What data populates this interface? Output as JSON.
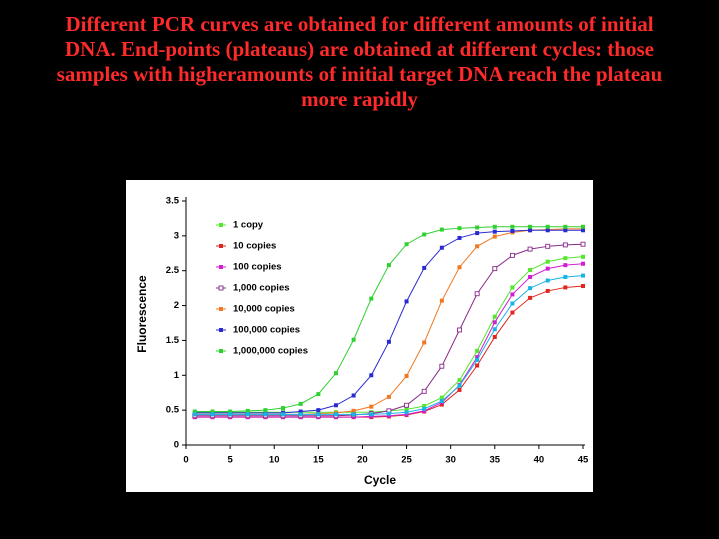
{
  "slide": {
    "title_lines": [
      "Different PCR curves are obtained for different amounts of initial",
      "DNA. End-points (plateaus) are obtained at different cycles: those",
      "samples with higheramounts of initial target DNA reach the plateau",
      "more rapidly"
    ]
  },
  "chart_data": {
    "type": "line",
    "x_label": "Cycle",
    "y_label": "Fluorescence",
    "x": [
      1,
      3,
      5,
      7,
      9,
      11,
      13,
      15,
      17,
      19,
      21,
      23,
      25,
      27,
      29,
      31,
      33,
      35,
      37,
      39,
      41,
      43,
      45
    ],
    "xlim": [
      0,
      45
    ],
    "xticks": [
      0,
      5,
      10,
      15,
      20,
      25,
      30,
      35,
      40,
      45
    ],
    "ylim": [
      0,
      3.5
    ],
    "yticks": [
      0,
      0.5,
      1,
      1.5,
      2,
      2.5,
      3,
      3.5
    ],
    "legend": "upper left",
    "series": [
      {
        "name": "1 copy",
        "color": "#55e62e",
        "marker": "square",
        "values": [
          0.47,
          0.47,
          0.47,
          0.47,
          0.47,
          0.47,
          0.47,
          0.47,
          0.47,
          0.47,
          0.47,
          0.49,
          0.51,
          0.56,
          0.68,
          0.93,
          1.35,
          1.84,
          2.26,
          2.51,
          2.63,
          2.68,
          2.7
        ]
      },
      {
        "name": "10 copies",
        "color": "#e0261e",
        "marker": "square",
        "values": [
          0.4,
          0.4,
          0.4,
          0.4,
          0.4,
          0.4,
          0.4,
          0.4,
          0.4,
          0.4,
          0.4,
          0.41,
          0.43,
          0.48,
          0.58,
          0.79,
          1.14,
          1.55,
          1.9,
          2.11,
          2.21,
          2.26,
          2.28
        ]
      },
      {
        "name": "100 copies",
        "color": "#d21ed2",
        "marker": "square",
        "values": [
          0.4,
          0.4,
          0.4,
          0.4,
          0.4,
          0.4,
          0.4,
          0.4,
          0.4,
          0.4,
          0.41,
          0.42,
          0.44,
          0.49,
          0.61,
          0.86,
          1.26,
          1.76,
          2.16,
          2.41,
          2.53,
          2.58,
          2.6
        ]
      },
      {
        "name": "1,000 copies",
        "color": "#8a2a8a",
        "marker": "open-square",
        "values": [
          0.42,
          0.42,
          0.42,
          0.42,
          0.42,
          0.42,
          0.42,
          0.42,
          0.42,
          0.43,
          0.45,
          0.49,
          0.57,
          0.77,
          1.13,
          1.65,
          2.17,
          2.53,
          2.72,
          2.81,
          2.85,
          2.87,
          2.88
        ]
      },
      {
        "name": "10,000 copies",
        "color": "#f07820",
        "marker": "square",
        "values": [
          0.44,
          0.44,
          0.44,
          0.44,
          0.44,
          0.44,
          0.44,
          0.45,
          0.46,
          0.49,
          0.55,
          0.69,
          0.99,
          1.47,
          2.07,
          2.55,
          2.85,
          2.99,
          3.05,
          3.08,
          3.09,
          3.1,
          3.1
        ]
      },
      {
        "name": "100,000 copies",
        "color": "#2a2ad2",
        "marker": "square",
        "values": [
          0.46,
          0.46,
          0.46,
          0.46,
          0.46,
          0.46,
          0.48,
          0.5,
          0.57,
          0.71,
          1.0,
          1.48,
          2.06,
          2.54,
          2.83,
          2.97,
          3.04,
          3.06,
          3.07,
          3.08,
          3.08,
          3.08,
          3.08
        ]
      },
      {
        "name": "1,000,000 copies",
        "color": "#30d030",
        "marker": "square",
        "values": [
          0.48,
          0.48,
          0.48,
          0.49,
          0.5,
          0.53,
          0.59,
          0.73,
          1.03,
          1.51,
          2.1,
          2.58,
          2.88,
          3.02,
          3.09,
          3.11,
          3.12,
          3.13,
          3.13,
          3.13,
          3.13,
          3.13,
          3.13
        ]
      },
      {
        "color": "#18b4e8",
        "marker": "square",
        "values": [
          0.44,
          0.44,
          0.44,
          0.44,
          0.44,
          0.44,
          0.44,
          0.44,
          0.44,
          0.44,
          0.44,
          0.45,
          0.47,
          0.52,
          0.63,
          0.85,
          1.22,
          1.66,
          2.03,
          2.25,
          2.36,
          2.41,
          2.43
        ]
      }
    ]
  }
}
